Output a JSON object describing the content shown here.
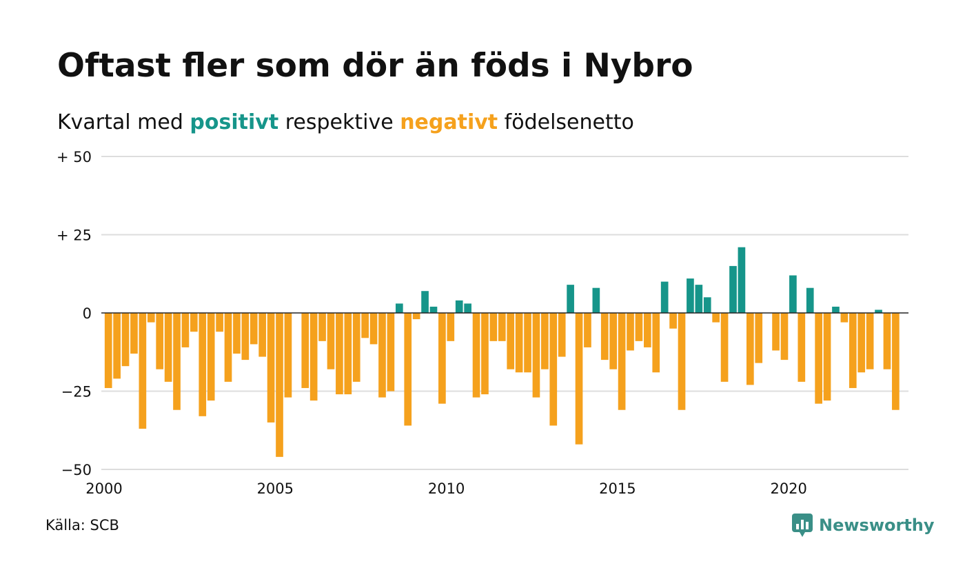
{
  "title": "Oftast fler som dör än föds i Nybro",
  "subtitle": {
    "prefix": "Kvartal med ",
    "positive_word": "positivt",
    "middle": " respektive ",
    "negative_word": "negativt",
    "suffix": " födelsenetto"
  },
  "source": "Källa: SCB",
  "brand": {
    "name": "Newsworthy",
    "icon": "newsworthy-logo-icon"
  },
  "colors": {
    "positive": "#16958a",
    "negative": "#f5a11d",
    "grid": "#dddddd",
    "zero": "#222222"
  },
  "chart_data": {
    "type": "bar",
    "ylim": [
      -50,
      50
    ],
    "xlim": [
      2000,
      2023.5
    ],
    "y_ticks": [
      {
        "value": 50,
        "label": "+ 50"
      },
      {
        "value": 25,
        "label": "+ 25"
      },
      {
        "value": 0,
        "label": "0"
      },
      {
        "value": -25,
        "label": "−25"
      },
      {
        "value": -50,
        "label": "−50"
      }
    ],
    "x_ticks": [
      {
        "value": 2000,
        "label": "2000"
      },
      {
        "value": 2005,
        "label": "2005"
      },
      {
        "value": 2010,
        "label": "2010"
      },
      {
        "value": 2015,
        "label": "2015"
      },
      {
        "value": 2020,
        "label": "2020"
      }
    ],
    "grid": true,
    "start_year": 2000,
    "quarters_per_year": 4,
    "values": [
      -24,
      -21,
      -17,
      -13,
      -37,
      -3,
      -18,
      -22,
      -31,
      -11,
      -6,
      -33,
      -28,
      -6,
      -22,
      -13,
      -15,
      -10,
      -14,
      -35,
      -46,
      -27,
      0,
      -24,
      -28,
      -9,
      -18,
      -26,
      -26,
      -22,
      -8,
      -10,
      -27,
      -25,
      3,
      -36,
      -2,
      7,
      2,
      -29,
      -9,
      4,
      3,
      -27,
      -26,
      -9,
      -9,
      -18,
      -19,
      -19,
      -27,
      -18,
      -36,
      -14,
      9,
      -42,
      -11,
      8,
      -15,
      -18,
      -31,
      -12,
      -9,
      -11,
      -19,
      10,
      -5,
      -31,
      11,
      9,
      5,
      -3,
      -22,
      15,
      21,
      -23,
      -16,
      0,
      -12,
      -15,
      12,
      -22,
      8,
      -29,
      -28,
      2,
      -3,
      -24,
      -19,
      -18,
      1,
      -18,
      -31
    ]
  }
}
